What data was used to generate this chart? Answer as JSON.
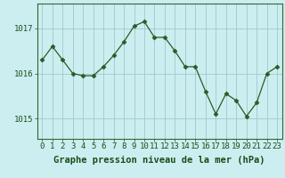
{
  "x": [
    0,
    1,
    2,
    3,
    4,
    5,
    6,
    7,
    8,
    9,
    10,
    11,
    12,
    13,
    14,
    15,
    16,
    17,
    18,
    19,
    20,
    21,
    22,
    23
  ],
  "y": [
    1016.3,
    1016.6,
    1016.3,
    1016.0,
    1015.95,
    1015.95,
    1016.15,
    1016.4,
    1016.7,
    1017.05,
    1017.15,
    1016.8,
    1016.8,
    1016.5,
    1016.15,
    1016.15,
    1015.6,
    1015.1,
    1015.55,
    1015.4,
    1015.05,
    1015.35,
    1016.0,
    1016.15
  ],
  "line_color": "#2d5a27",
  "marker": "D",
  "markersize": 2.5,
  "bg_color": "#cceef0",
  "grid_color": "#99cccc",
  "xlabel": "Graphe pression niveau de la mer (hPa)",
  "ylabel_ticks": [
    1015,
    1016,
    1017
  ],
  "ylim": [
    1014.55,
    1017.55
  ],
  "xlim": [
    -0.5,
    23.5
  ],
  "xlabel_fontsize": 7.5,
  "tick_fontsize": 6.5,
  "spine_color": "#336633",
  "label_color": "#1a4d1a"
}
